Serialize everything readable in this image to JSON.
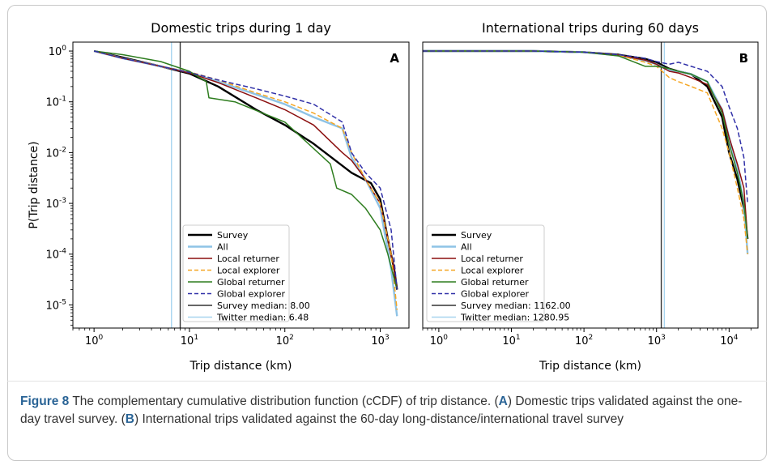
{
  "figure": {
    "label": "Figure 8",
    "caption_intro": "The complementary cumulative distribution function (cCDF) of trip distance. (",
    "caption_a_letter": "A",
    "caption_a_text": ") Domestic trips validated against the one-day travel survey. (",
    "caption_b_letter": "B",
    "caption_b_text": ") International trips validated against the 60-day long-distance/international travel survey"
  },
  "colors": {
    "survey": "#000000",
    "all": "#8ec3e6",
    "local_returner": "#8b0f0f",
    "local_explorer": "#f5a623",
    "global_returner": "#2e7d1f",
    "global_explorer": "#3030a8",
    "survey_median": "#333333",
    "twitter_median": "#a8d4ef"
  },
  "chart_data": [
    {
      "type": "line",
      "panel_letter": "A",
      "title": "Domestic trips during 1 day",
      "xlabel": "Trip distance (km)",
      "ylabel": "P(Trip distance)",
      "xscale": "log",
      "yscale": "log",
      "xlim": [
        0.6,
        2000
      ],
      "ylim": [
        3.5e-06,
        1.5
      ],
      "x_ticks": [
        {
          "base": "10",
          "exp": "0",
          "value": 1
        },
        {
          "base": "10",
          "exp": "1",
          "value": 10
        },
        {
          "base": "10",
          "exp": "2",
          "value": 100
        },
        {
          "base": "10",
          "exp": "3",
          "value": 1000
        }
      ],
      "y_ticks": [
        {
          "base": "10",
          "exp": "0",
          "value": 1
        },
        {
          "base": "10",
          "exp": "-1",
          "value": 0.1
        },
        {
          "base": "10",
          "exp": "-2",
          "value": 0.01
        },
        {
          "base": "10",
          "exp": "-3",
          "value": 0.001
        },
        {
          "base": "10",
          "exp": "-4",
          "value": 0.0001
        },
        {
          "base": "10",
          "exp": "-5",
          "value": 1e-05
        }
      ],
      "grid": false,
      "legend_position": "lower-center",
      "vlines": [
        {
          "name": "Survey median: 8.00",
          "x": 8.0,
          "color_key": "survey_median"
        },
        {
          "name": "Twitter median: 6.48",
          "x": 6.48,
          "color_key": "twitter_median"
        }
      ],
      "series": [
        {
          "name": "Survey",
          "color_key": "survey",
          "dash": false,
          "width": 2.4,
          "x": [
            1,
            2,
            5,
            10,
            20,
            50,
            100,
            200,
            500,
            800,
            1000,
            1200,
            1400,
            1500
          ],
          "y": [
            1,
            0.75,
            0.5,
            0.36,
            0.2,
            0.07,
            0.035,
            0.015,
            0.004,
            0.0025,
            0.0012,
            0.0002,
            5e-05,
            2e-05
          ]
        },
        {
          "name": "All",
          "color_key": "all",
          "dash": false,
          "width": 2.4,
          "x": [
            1,
            2,
            5,
            10,
            20,
            50,
            100,
            200,
            400,
            500,
            700,
            1000,
            1300,
            1500
          ],
          "y": [
            1,
            0.72,
            0.5,
            0.38,
            0.25,
            0.14,
            0.09,
            0.05,
            0.03,
            0.008,
            0.003,
            0.0008,
            5e-05,
            6e-06
          ]
        },
        {
          "name": "Local returner",
          "color_key": "local_returner",
          "dash": false,
          "width": 1.5,
          "x": [
            1,
            2,
            5,
            10,
            20,
            50,
            100,
            200,
            400,
            500,
            700,
            1000,
            1200,
            1400,
            1500
          ],
          "y": [
            1,
            0.72,
            0.5,
            0.37,
            0.24,
            0.12,
            0.07,
            0.035,
            0.01,
            0.007,
            0.003,
            0.001,
            0.0002,
            5e-05,
            2e-05
          ]
        },
        {
          "name": "Local explorer",
          "color_key": "local_explorer",
          "dash": true,
          "width": 1.5,
          "x": [
            1,
            2,
            5,
            10,
            20,
            50,
            100,
            200,
            400,
            500,
            700,
            1000,
            1300,
            1500
          ],
          "y": [
            1,
            0.72,
            0.5,
            0.39,
            0.27,
            0.15,
            0.1,
            0.06,
            0.03,
            0.01,
            0.003,
            0.001,
            0.0001,
            8e-06
          ]
        },
        {
          "name": "Global returner",
          "color_key": "global_returner",
          "dash": false,
          "width": 1.5,
          "x": [
            1,
            2,
            5,
            10,
            15,
            16,
            30,
            100,
            300,
            350,
            500,
            700,
            1000,
            1200,
            1500
          ],
          "y": [
            1,
            0.85,
            0.62,
            0.4,
            0.25,
            0.12,
            0.1,
            0.04,
            0.006,
            0.002,
            0.0015,
            0.0008,
            0.0003,
            0.0001,
            2e-05
          ]
        },
        {
          "name": "Global explorer",
          "color_key": "global_explorer",
          "dash": true,
          "width": 1.5,
          "x": [
            1,
            2,
            5,
            10,
            20,
            50,
            100,
            200,
            400,
            500,
            700,
            1000,
            1300,
            1500
          ],
          "y": [
            1,
            0.72,
            0.5,
            0.38,
            0.27,
            0.18,
            0.13,
            0.09,
            0.04,
            0.01,
            0.004,
            0.002,
            0.0003,
            2e-05
          ]
        }
      ]
    },
    {
      "type": "line",
      "panel_letter": "B",
      "title": "International trips during 60 days",
      "xlabel": "Trip distance (km)",
      "ylabel": "",
      "xscale": "log",
      "yscale": "log",
      "xlim": [
        0.6,
        25000
      ],
      "ylim": [
        3.5e-06,
        1.5
      ],
      "x_ticks": [
        {
          "base": "10",
          "exp": "0",
          "value": 1
        },
        {
          "base": "10",
          "exp": "1",
          "value": 10
        },
        {
          "base": "10",
          "exp": "2",
          "value": 100
        },
        {
          "base": "10",
          "exp": "3",
          "value": 1000
        },
        {
          "base": "10",
          "exp": "4",
          "value": 10000
        }
      ],
      "y_ticks": [],
      "grid": false,
      "legend_position": "lower-left",
      "vlines": [
        {
          "name": "Survey median: 1162.00",
          "x": 1162.0,
          "color_key": "survey_median"
        },
        {
          "name": "Twitter median: 1280.95",
          "x": 1280.95,
          "color_key": "twitter_median"
        }
      ],
      "series": [
        {
          "name": "Survey",
          "color_key": "survey",
          "dash": false,
          "width": 2.4,
          "x": [
            0.6,
            20,
            100,
            300,
            700,
            1000,
            1500,
            2000,
            3000,
            5000,
            8000,
            10000,
            13000,
            16000,
            18000
          ],
          "y": [
            1,
            1,
            0.95,
            0.85,
            0.7,
            0.6,
            0.45,
            0.4,
            0.35,
            0.2,
            0.05,
            0.01,
            0.003,
            0.0008,
            0.0002
          ]
        },
        {
          "name": "All",
          "color_key": "all",
          "dash": false,
          "width": 2.4,
          "x": [
            0.6,
            20,
            100,
            300,
            700,
            1000,
            1500,
            2000,
            3000,
            5000,
            8000,
            10000,
            13000,
            16000,
            18000
          ],
          "y": [
            1,
            1,
            0.95,
            0.82,
            0.65,
            0.55,
            0.42,
            0.4,
            0.35,
            0.25,
            0.07,
            0.02,
            0.005,
            0.001,
            0.0001
          ]
        },
        {
          "name": "Local returner",
          "color_key": "local_returner",
          "dash": false,
          "width": 1.5,
          "x": [
            0.6,
            20,
            100,
            300,
            700,
            1000,
            1500,
            2000,
            3000,
            5000,
            8000,
            10000,
            13000,
            16000,
            18000
          ],
          "y": [
            1,
            1,
            0.95,
            0.83,
            0.66,
            0.55,
            0.4,
            0.37,
            0.3,
            0.22,
            0.07,
            0.02,
            0.006,
            0.002,
            0.0002
          ]
        },
        {
          "name": "Local explorer",
          "color_key": "local_explorer",
          "dash": true,
          "width": 1.5,
          "x": [
            0.6,
            20,
            100,
            300,
            700,
            1000,
            1500,
            2000,
            3000,
            5000,
            8000,
            10000,
            13000,
            16000,
            18000
          ],
          "y": [
            1,
            1,
            0.95,
            0.83,
            0.6,
            0.5,
            0.3,
            0.25,
            0.2,
            0.15,
            0.03,
            0.01,
            0.002,
            0.0005,
            0.0001
          ]
        },
        {
          "name": "Global returner",
          "color_key": "global_returner",
          "dash": false,
          "width": 1.5,
          "x": [
            0.6,
            20,
            100,
            300,
            700,
            1000,
            1500,
            2000,
            3000,
            5000,
            8000,
            10000,
            13000,
            16000,
            18000
          ],
          "y": [
            1,
            1,
            0.95,
            0.8,
            0.5,
            0.5,
            0.45,
            0.4,
            0.35,
            0.25,
            0.06,
            0.015,
            0.004,
            0.001,
            0.0002
          ]
        },
        {
          "name": "Global explorer",
          "color_key": "global_explorer",
          "dash": true,
          "width": 1.5,
          "x": [
            0.6,
            20,
            100,
            300,
            700,
            1000,
            1500,
            2000,
            3000,
            5000,
            8000,
            10000,
            13000,
            16000,
            18000
          ],
          "y": [
            1,
            1,
            0.95,
            0.85,
            0.72,
            0.62,
            0.55,
            0.6,
            0.5,
            0.4,
            0.2,
            0.08,
            0.03,
            0.008,
            0.001
          ]
        }
      ]
    }
  ]
}
